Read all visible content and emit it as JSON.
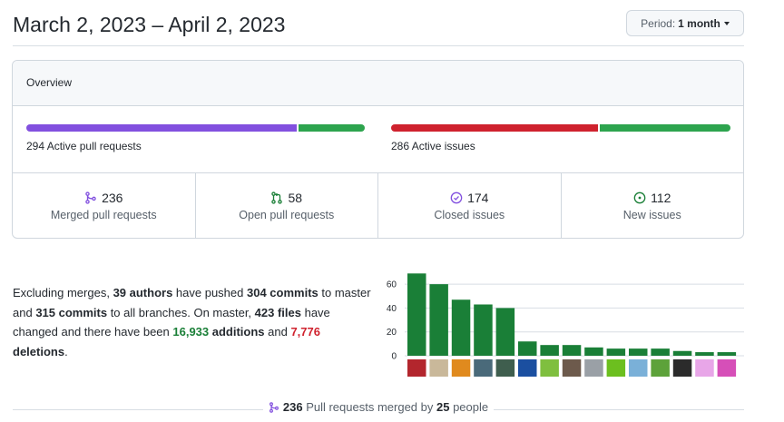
{
  "header": {
    "date_range": "March 2, 2023 – April 2, 2023",
    "period_label": "Period:",
    "period_value": "1 month"
  },
  "overview": {
    "title": "Overview",
    "pull_requests": {
      "count": "294",
      "label": "Active pull requests",
      "merged_fraction": 0.8,
      "colors": {
        "merged": "#8250df",
        "open": "#2da44e"
      }
    },
    "issues": {
      "count": "286",
      "label": "Active issues",
      "closed_fraction": 0.61,
      "colors": {
        "closed": "#cf222e",
        "new": "#2da44e"
      }
    },
    "stats": [
      {
        "icon": "git-merge-icon",
        "count": "236",
        "label": "Merged pull requests",
        "color": "#8250df"
      },
      {
        "icon": "git-pull-request-icon",
        "count": "58",
        "label": "Open pull requests",
        "color": "#1a7f37"
      },
      {
        "icon": "issue-closed-icon",
        "count": "174",
        "label": "Closed issues",
        "color": "#8250df"
      },
      {
        "icon": "issue-opened-icon",
        "count": "112",
        "label": "New issues",
        "color": "#1a7f37"
      }
    ]
  },
  "summary": {
    "t1": "Excluding merges, ",
    "authors": "39 authors",
    "t2": " have pushed ",
    "commits_master": "304 commits",
    "t3": " to master and ",
    "commits_all": "315 commits",
    "t4": " to all branches. On master, ",
    "files": "423 files",
    "t5": " have changed and there have been ",
    "additions_num": "16,933",
    "additions_word": " additions",
    "t6": " and ",
    "deletions_num": "7,776",
    "deletions_word": " deletions",
    "t7": "."
  },
  "chart_data": {
    "type": "bar",
    "yticks": [
      "0",
      "20",
      "40",
      "60"
    ],
    "ylim": [
      0,
      70
    ],
    "values": [
      69,
      60,
      47,
      43,
      40,
      12,
      9,
      9,
      7,
      6,
      6,
      6,
      4,
      3,
      3
    ],
    "bar_color": "#1a7f37",
    "avatar_colors": [
      "#b3262d",
      "#c9b89a",
      "#e08a1e",
      "#4a6a7a",
      "#3f5e4e",
      "#1b4fa0",
      "#7fbf3f",
      "#6d5a4c",
      "#9aa0a6",
      "#6cbf1f",
      "#7ab0d8",
      "#5da23a",
      "#2b2b2b",
      "#e8a6e8",
      "#d64fb8"
    ]
  },
  "footer": {
    "count": "236",
    "t1": " Pull requests merged by ",
    "people": "25",
    "t2": " people"
  }
}
